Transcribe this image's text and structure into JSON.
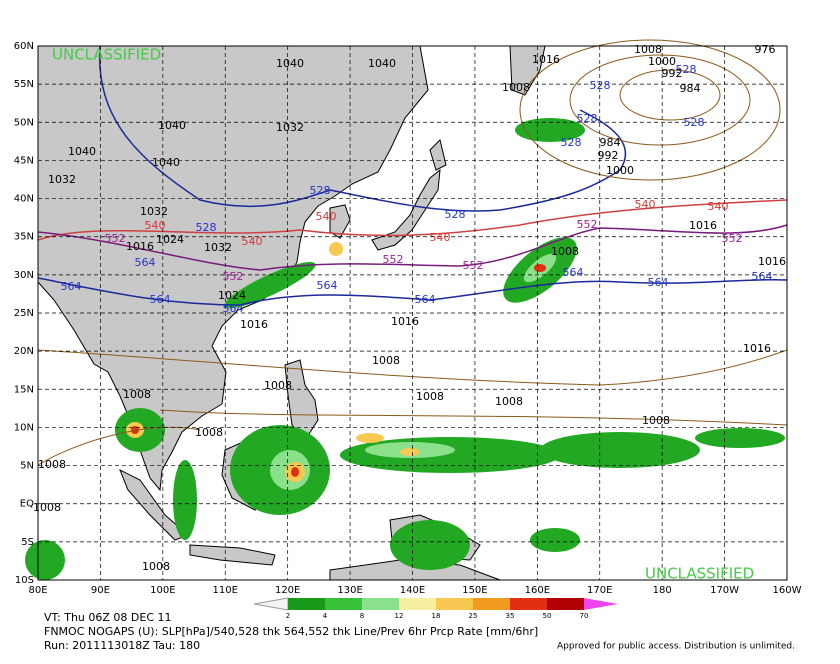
{
  "classification_top": "UNCLASSIFIED",
  "classification_bottom": "UNCLASSIFIED",
  "axes": {
    "x_labels": [
      "80E",
      "90E",
      "100E",
      "110E",
      "120E",
      "130E",
      "140E",
      "150E",
      "160E",
      "170E",
      "180",
      "170W",
      "160W"
    ],
    "y_labels": [
      "60N",
      "55N",
      "50N",
      "45N",
      "40N",
      "35N",
      "30N",
      "25N",
      "20N",
      "15N",
      "10N",
      "5N",
      "EQ",
      "5S",
      "10S"
    ]
  },
  "contour_labels": {
    "slp": [
      "1040",
      "1040",
      "1040",
      "1032",
      "1040",
      "1040",
      "1032",
      "1032",
      "1024",
      "1032",
      "1024",
      "1016",
      "1016",
      "1016",
      "1008",
      "1000",
      "992",
      "984",
      "984",
      "992",
      "1000",
      "1008",
      "1016",
      "976",
      "1016",
      "1008",
      "1016",
      "1016",
      "1008",
      "1008",
      "1008",
      "1008",
      "1008",
      "1008",
      "1008",
      "1008",
      "1008",
      "1008"
    ],
    "thk528": [
      "528",
      "528",
      "528",
      "528",
      "528",
      "528",
      "528",
      "528"
    ],
    "thk540": [
      "540",
      "540",
      "540",
      "540",
      "540",
      "540"
    ],
    "thk552": [
      "552",
      "552",
      "552",
      "552",
      "552",
      "552"
    ],
    "thk564": [
      "564",
      "564",
      "564",
      "564",
      "564",
      "564",
      "564",
      "564",
      "564"
    ]
  },
  "colorbar": {
    "labels": [
      2,
      4,
      8,
      12,
      18,
      25,
      35,
      50,
      70
    ]
  },
  "footer": {
    "valid_time": "VT: Thu 06Z 08 DEC 11",
    "description": "FNMOC NOGAPS (U): SLP[hPa]/540,528 thk 564,552 thk Line/Prev 6hr Prcp Rate [mm/6hr]",
    "run": "Run: 2011113018Z Tau: 180",
    "disclaimer": "Approved for public access. Distribution is unlimited."
  }
}
